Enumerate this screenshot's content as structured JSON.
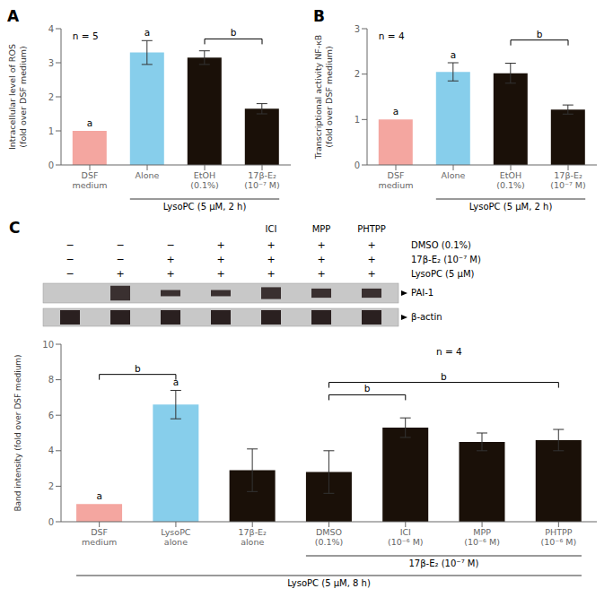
{
  "chart_data": [
    {
      "type": "bar",
      "title": "A",
      "categories": [
        "DSF\nmedium",
        "Alone",
        "EtOH\n(0.1%)",
        "17β-E₂\n(10⁻⁷ M)"
      ],
      "values": [
        1.0,
        3.3,
        3.15,
        1.65
      ],
      "errors": [
        0.0,
        0.35,
        0.2,
        0.15
      ],
      "colors": [
        "#f4a6a0",
        "#87ceeb",
        "#1a1008",
        "#1a1008"
      ],
      "ylabel": "Intracellular level of ROS\n(fold over DSF medium)",
      "ylim": [
        0,
        4
      ],
      "yticks": [
        0,
        1,
        2,
        3,
        4
      ],
      "grid": false,
      "annotations": [
        {
          "text": "n = 5"
        },
        {
          "text": "a",
          "category": "DSF\nmedium"
        },
        {
          "text": "a",
          "category": "Alone"
        },
        {
          "text": "b",
          "between": [
            "EtOH\n(0.1%)",
            "17β-E₂\n(10⁻⁷ M)"
          ],
          "y": 3.7
        },
        {
          "text": "LysoPC (5 μM, 2 h)",
          "span": [
            "Alone",
            "17β-E₂\n(10⁻⁷ M)"
          ]
        }
      ]
    },
    {
      "type": "bar",
      "title": "B",
      "categories": [
        "DSF\nmedium",
        "Alone",
        "EtOH\n(0.1%)",
        "17β-E₂\n(10⁻⁷ M)"
      ],
      "values": [
        1.0,
        2.05,
        2.02,
        1.22
      ],
      "errors": [
        0.0,
        0.2,
        0.22,
        0.1
      ],
      "colors": [
        "#f4a6a0",
        "#87ceeb",
        "#1a1008",
        "#1a1008"
      ],
      "ylabel": "Transcriptional activity NF-κB\n(fold over DSF medium)",
      "ylim": [
        0,
        3
      ],
      "yticks": [
        0,
        1,
        2,
        3
      ],
      "grid": false,
      "annotations": [
        {
          "text": "n = 4"
        },
        {
          "text": "a",
          "category": "DSF\nmedium"
        },
        {
          "text": "a",
          "category": "Alone"
        },
        {
          "text": "b",
          "between": [
            "EtOH\n(0.1%)",
            "17β-E₂\n(10⁻⁷ M)"
          ],
          "y": 2.75
        },
        {
          "text": "LysoPC (5 μM, 2 h)",
          "span": [
            "Alone",
            "17β-E₂\n(10⁻⁷ M)"
          ]
        }
      ]
    },
    {
      "type": "blot",
      "title": "C",
      "header": [
        null,
        null,
        null,
        null,
        "ICI",
        "MPP",
        "PHTPP"
      ],
      "rows": [
        "DMSO (0.1%)",
        "17β-E₂ (10⁻⁷ M)",
        "LysoPC (5 μM)"
      ],
      "cells": [
        [
          "−",
          "−",
          "−",
          "+",
          "+",
          "+",
          "+"
        ],
        [
          "−",
          "−",
          "+",
          "+",
          "+",
          "+",
          "+"
        ],
        [
          "−",
          "+",
          "+",
          "+",
          "+",
          "+",
          "+"
        ]
      ],
      "bands": [
        {
          "name": "PAI-1",
          "values": [
            0.0,
            1.0,
            0.42,
            0.42,
            0.8,
            0.62,
            0.62
          ]
        },
        {
          "name": "β-actin",
          "values": [
            1.0,
            1.0,
            1.0,
            1.0,
            1.0,
            1.0,
            1.0
          ]
        }
      ]
    },
    {
      "type": "bar",
      "categories": [
        "DSF\nmedium",
        "LysoPC\nalone",
        "17β-E₂\nalone",
        "DMSO\n(0.1%)",
        "ICI\n(10⁻⁶ M)",
        "MPP\n(10⁻⁶ M)",
        "PHTPP\n(10⁻⁶ M)"
      ],
      "values": [
        1.0,
        6.6,
        2.9,
        2.8,
        5.3,
        4.5,
        4.6
      ],
      "errors": [
        0.0,
        0.8,
        1.2,
        1.2,
        0.55,
        0.5,
        0.6
      ],
      "colors": [
        "#f4a6a0",
        "#87ceeb",
        "#1a1008",
        "#1a1008",
        "#1a1008",
        "#1a1008",
        "#1a1008"
      ],
      "ylabel": "Band intensity (fold over DSF medium)",
      "ylim": [
        0,
        10
      ],
      "yticks": [
        0,
        2,
        4,
        6,
        8,
        10
      ],
      "grid": false,
      "annotations": [
        {
          "text": "n = 4"
        },
        {
          "text": "a",
          "category": "DSF\nmedium"
        },
        {
          "text": "a",
          "category": "LysoPC\nalone"
        },
        {
          "text": "b",
          "between": [
            "DSF\nmedium",
            "LysoPC\nalone"
          ],
          "y": 8.3
        },
        {
          "text": "b",
          "between": [
            "DMSO\n(0.1%)",
            "ICI\n(10⁻⁶ M)"
          ],
          "y": 7.15
        },
        {
          "text": "b",
          "between": [
            "DMSO\n(0.1%)",
            "PHTPP\n(10⁻⁶ M)"
          ],
          "y": 7.85
        },
        {
          "text": "17β-E₂ (10⁻⁷ M)",
          "span": [
            "DMSO\n(0.1%)",
            "PHTPP\n(10⁻⁶ M)"
          ]
        },
        {
          "text": "LysoPC (5 μM, 8 h)",
          "span": [
            "DSF\nmedium",
            "PHTPP\n(10⁻⁶ M)"
          ]
        }
      ]
    }
  ]
}
